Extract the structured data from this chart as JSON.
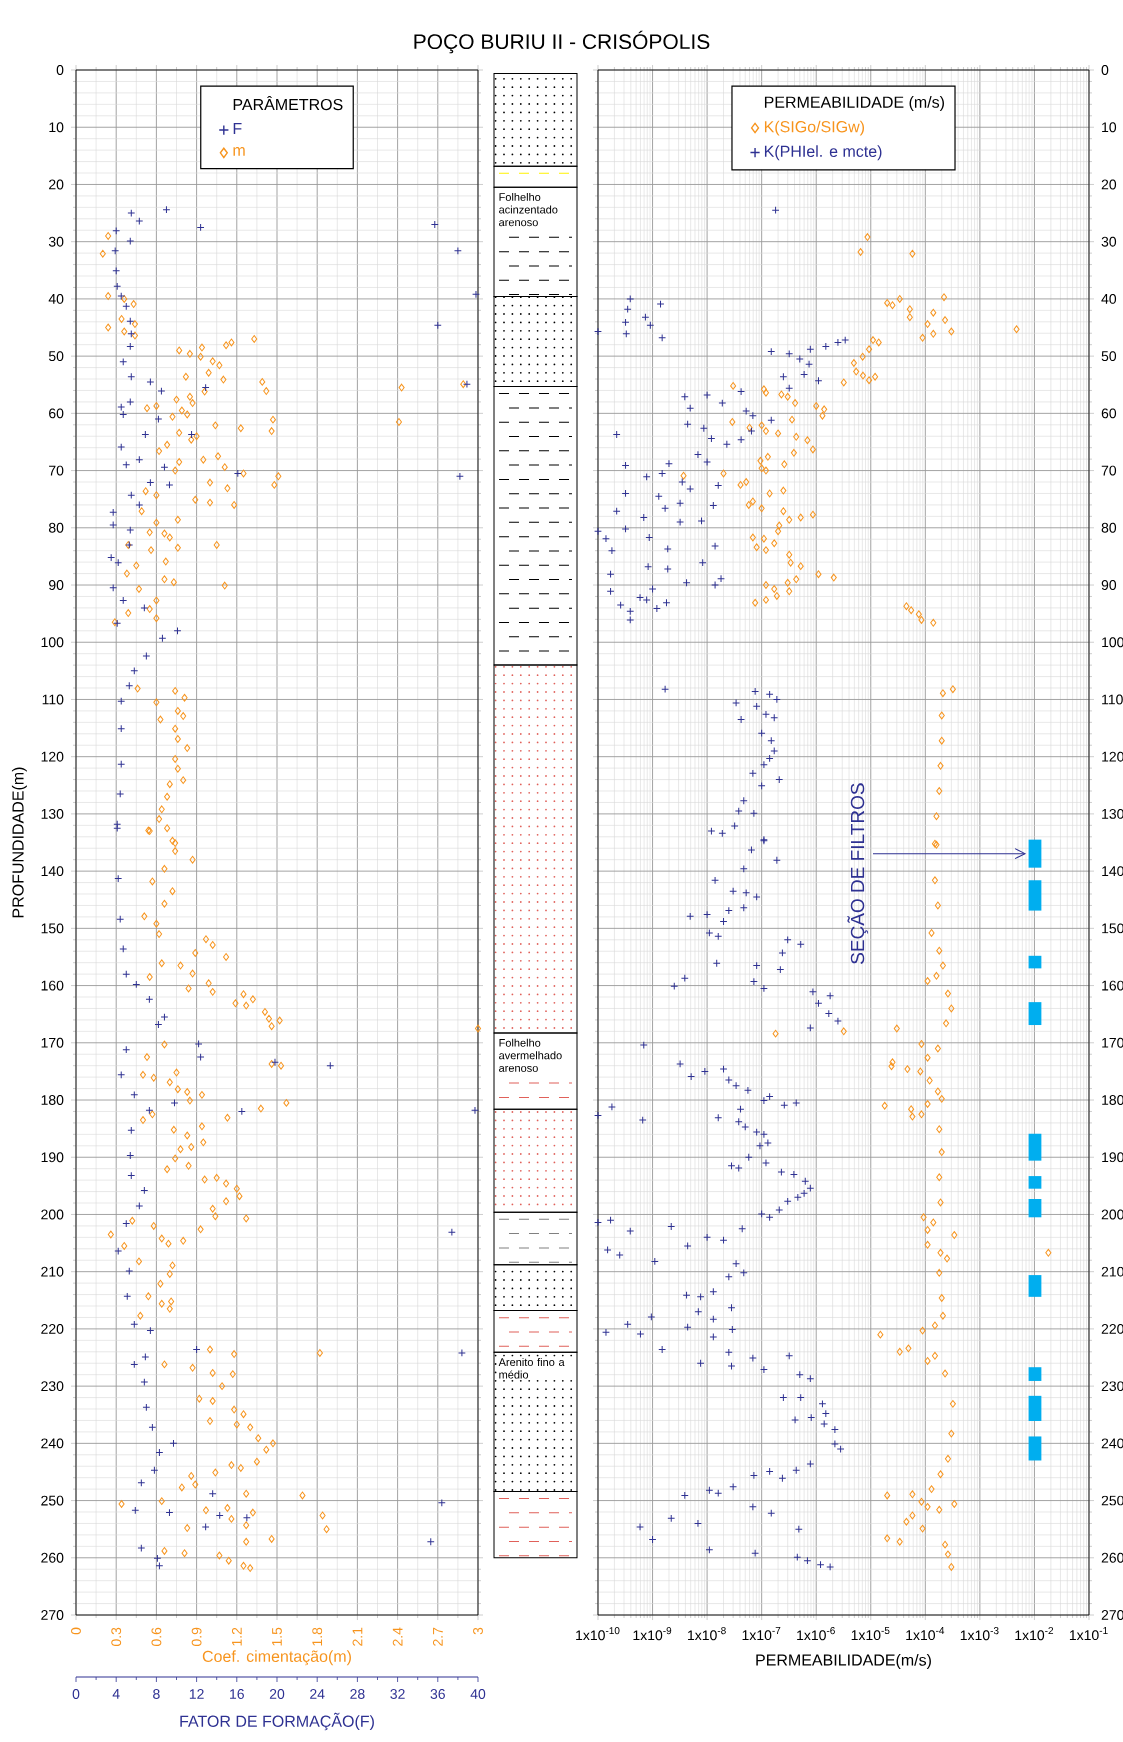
{
  "chart_data": [
    {
      "type": "scatter",
      "title": "POÇO BURIU II - CRISÓPOLIS",
      "ylabel": "PROFUNDIDADE(m)",
      "xlabel": "Coef. cimentação(m)",
      "x2label": "FATOR DE FORMAÇÃO(F)",
      "legend_title": "PARÂMETROS",
      "legend": "top",
      "grid": true,
      "xlim": [
        0,
        3
      ],
      "xticks": [
        0,
        0.3,
        0.6,
        0.9,
        1.2,
        1.5,
        1.8,
        2.1,
        2.4,
        2.7,
        3
      ],
      "x2lim": [
        0,
        40
      ],
      "x2ticks": [
        0,
        4,
        8,
        12,
        16,
        20,
        24,
        28,
        32,
        36,
        40
      ],
      "ylim": [
        270,
        0
      ],
      "yticks": [
        0,
        10,
        20,
        30,
        40,
        50,
        60,
        70,
        80,
        90,
        100,
        110,
        120,
        130,
        140,
        150,
        160,
        170,
        180,
        190,
        200,
        210,
        220,
        230,
        240,
        250,
        260,
        270
      ],
      "series": [
        {
          "name": "F",
          "color": "#2e3192",
          "marker": "cross",
          "axis": "x2",
          "x": [
            5.5,
            6.3,
            9.0,
            12.4,
            35.7,
            38.0,
            39.8,
            36.0,
            4.0,
            5.4,
            3.9,
            4.0,
            4.1,
            4.5,
            5.0,
            5.4,
            5.5,
            5.4,
            4.7,
            5.5,
            7.4,
            8.5,
            12.9,
            38.9,
            5.4,
            4.5,
            4.7,
            8.2,
            6.9,
            4.5,
            5.0,
            6.3,
            8.8,
            11.5,
            16.1,
            38.2,
            7.4,
            9.3,
            5.5,
            6.3,
            3.7,
            3.7,
            5.4,
            5.3,
            3.5,
            4.2,
            3.7,
            4.7,
            6.8,
            4.1,
            10.1,
            8.6,
            7.0,
            5.8,
            5.3,
            4.5,
            4.5,
            4.5,
            4.4,
            4.1,
            4.1,
            4.2,
            4.4,
            4.7,
            5.0,
            6.0,
            7.3,
            8.8,
            8.2,
            5.0,
            12.2,
            12.4,
            19.8,
            25.3,
            4.5,
            5.8,
            9.8,
            7.3,
            16.5,
            39.7,
            5.5,
            5.4,
            5.5,
            6.8,
            6.3,
            5.0,
            4.2,
            37.4,
            5.3,
            5.1,
            5.8,
            7.4,
            12.0,
            38.4,
            6.9,
            5.8,
            6.8,
            7.0,
            7.6,
            8.3,
            9.7,
            7.8,
            6.5,
            13.6,
            36.4,
            5.9,
            9.3,
            14.3,
            17.0,
            12.9,
            35.3,
            6.5,
            8.1,
            8.3
          ],
          "values": [
            25.0,
            26.4,
            24.4,
            27.5,
            27.0,
            31.6,
            39.2,
            44.6,
            28.1,
            29.9,
            31.6,
            35.1,
            37.8,
            39.5,
            41.3,
            43.9,
            46.1,
            48.3,
            51.0,
            53.6,
            54.5,
            56.1,
            55.5,
            54.9,
            58.0,
            58.9,
            60.2,
            61.0,
            63.7,
            65.9,
            69.0,
            68.1,
            69.4,
            63.7,
            70.5,
            71.0,
            72.1,
            72.5,
            74.3,
            76.0,
            77.3,
            79.5,
            80.4,
            83.0,
            85.2,
            86.1,
            90.5,
            92.7,
            94.0,
            96.7,
            98.0,
            99.3,
            102.4,
            105.0,
            107.6,
            110.3,
            115.1,
            121.3,
            126.5,
            131.8,
            132.5,
            141.3,
            148.4,
            153.6,
            158.0,
            159.8,
            162.4,
            165.5,
            166.8,
            171.2,
            170.2,
            172.5,
            173.4,
            174.0,
            175.6,
            179.1,
            180.5,
            181.8,
            182.0,
            181.8,
            185.3,
            189.7,
            193.2,
            195.8,
            198.5,
            201.6,
            206.4,
            203.1,
            209.9,
            214.3,
            219.2,
            220.3,
            223.6,
            224.2,
            224.9,
            226.2,
            229.3,
            233.7,
            237.2,
            241.6,
            240.0,
            244.7,
            246.9,
            248.8,
            250.4,
            251.7,
            252.1,
            252.6,
            253.0,
            254.6,
            257.2,
            258.3,
            260.1,
            261.4
          ]
        },
        {
          "name": "m",
          "color": "#f7941d",
          "marker": "diamond",
          "x": [
            0.24,
            0.2,
            0.24,
            0.24,
            0.36,
            0.43,
            0.34,
            0.44,
            0.36,
            0.44,
            0.77,
            0.85,
            0.94,
            1.12,
            1.16,
            1.33,
            0.93,
            1.02,
            1.07,
            0.99,
            1.1,
            0.82,
            1.39,
            1.42,
            2.43,
            2.89,
            0.96,
            0.75,
            0.85,
            0.87,
            0.53,
            0.6,
            0.79,
            0.83,
            0.72,
            1.04,
            1.23,
            1.47,
            1.46,
            2.41,
            0.77,
            0.9,
            0.68,
            0.62,
            0.86,
            0.77,
            0.95,
            1.06,
            1.11,
            1.25,
            1.51,
            1.48,
            0.74,
            1.0,
            1.13,
            0.52,
            0.6,
            0.89,
            1.0,
            1.18,
            0.49,
            0.76,
            0.6,
            0.55,
            0.66,
            0.7,
            0.39,
            0.56,
            0.76,
            1.05,
            0.45,
            0.67,
            0.38,
            0.66,
            0.73,
            1.11,
            0.47,
            0.6,
            0.55,
            0.39,
            0.29,
            0.6,
            0.46,
            0.74,
            0.81,
            0.6,
            0.76,
            0.63,
            0.8,
            0.74,
            0.76,
            0.83,
            0.74,
            0.76,
            0.8,
            0.7,
            0.68,
            0.64,
            0.62,
            0.54,
            0.68,
            0.74,
            0.55,
            0.72,
            0.74,
            0.87,
            0.66,
            0.57,
            0.72,
            0.66,
            0.51,
            0.6,
            0.62,
            0.97,
            1.02,
            0.89,
            1.12,
            0.64,
            0.78,
            0.87,
            0.55,
            0.99,
            0.84,
            1.02,
            1.25,
            1.19,
            1.32,
            1.27,
            1.41,
            1.44,
            1.52,
            1.46,
            3.0,
            0.66,
            0.53,
            1.46,
            1.53,
            0.5,
            0.58,
            0.75,
            0.7,
            0.76,
            0.83,
            0.94,
            0.85,
            1.57,
            1.38,
            1.13,
            0.5,
            0.57,
            0.73,
            0.94,
            0.83,
            0.95,
            0.86,
            0.78,
            0.74,
            0.84,
            0.68,
            0.96,
            1.05,
            1.12,
            1.2,
            1.22,
            1.12,
            1.02,
            1.04,
            1.27,
            0.93,
            0.58,
            0.42,
            0.26,
            0.36,
            0.64,
            0.69,
            0.8,
            0.47,
            0.72,
            0.7,
            0.63,
            0.54,
            0.64,
            0.71,
            0.7,
            0.48,
            1.0,
            1.18,
            1.82,
            0.66,
            0.87,
            1.02,
            1.17,
            1.09,
            0.92,
            1.02,
            1.18,
            1.25,
            1.0,
            1.2,
            1.3,
            1.36,
            1.42,
            1.47,
            1.35,
            1.16,
            1.23,
            1.04,
            0.86,
            0.79,
            0.89,
            1.27,
            1.69,
            0.34,
            0.64,
            0.97,
            1.13,
            1.32,
            1.84,
            0.83,
            1.16,
            1.27,
            1.87,
            1.27,
            1.46,
            0.66,
            0.81,
            1.07,
            1.14,
            1.25,
            1.3
          ],
          "values": [
            29.0,
            32.1,
            39.5,
            45.0,
            40.0,
            40.9,
            43.5,
            44.4,
            45.7,
            46.4,
            49.0,
            49.6,
            48.5,
            48.1,
            47.6,
            47.0,
            50.1,
            50.9,
            51.6,
            52.9,
            54.1,
            53.6,
            54.5,
            56.1,
            55.5,
            54.9,
            56.2,
            57.6,
            57.1,
            58.2,
            59.1,
            58.7,
            59.5,
            60.2,
            60.6,
            62.1,
            62.6,
            61.1,
            63.1,
            61.5,
            63.4,
            64.0,
            65.5,
            66.6,
            64.6,
            68.5,
            68.1,
            67.5,
            69.4,
            70.5,
            71.0,
            72.5,
            70.0,
            72.1,
            73.1,
            73.6,
            74.3,
            75.1,
            75.6,
            76.0,
            77.1,
            78.6,
            79.1,
            80.8,
            81.0,
            81.7,
            83.0,
            83.9,
            83.5,
            83.0,
            86.6,
            85.9,
            88.0,
            89.0,
            89.5,
            90.1,
            90.7,
            92.7,
            94.2,
            94.9,
            96.5,
            95.8,
            108.1,
            108.5,
            109.7,
            110.5,
            112.0,
            113.5,
            112.9,
            115.1,
            116.9,
            118.5,
            120.4,
            122.1,
            124.1,
            124.8,
            127.0,
            129.2,
            130.9,
            132.9,
            132.5,
            135.1,
            133.0,
            134.7,
            136.5,
            138.0,
            139.6,
            141.8,
            143.5,
            145.7,
            147.9,
            149.2,
            151.0,
            151.9,
            152.9,
            154.3,
            155.0,
            156.1,
            156.5,
            157.9,
            158.5,
            159.6,
            160.5,
            161.1,
            161.5,
            163.1,
            162.4,
            163.5,
            164.6,
            165.8,
            166.1,
            167.1,
            167.5,
            170.3,
            172.5,
            173.7,
            174.0,
            175.6,
            176.1,
            175.2,
            176.9,
            178.1,
            178.6,
            179.1,
            180.1,
            180.5,
            181.5,
            183.1,
            183.5,
            182.5,
            185.2,
            184.6,
            186.2,
            187.4,
            188.2,
            188.6,
            190.2,
            191.5,
            192.1,
            193.9,
            193.6,
            194.6,
            195.5,
            196.8,
            197.7,
            199.0,
            200.3,
            200.7,
            202.6,
            202.0,
            201.1,
            203.5,
            205.5,
            204.2,
            205.1,
            204.6,
            208.2,
            208.9,
            210.4,
            212.1,
            214.3,
            215.6,
            215.2,
            216.5,
            217.7,
            223.6,
            224.4,
            224.2,
            226.2,
            226.8,
            227.7,
            227.9,
            230.0,
            232.2,
            232.6,
            234.1,
            234.9,
            236.1,
            236.7,
            237.2,
            239.1,
            241.1,
            240.0,
            243.2,
            243.8,
            244.3,
            245.1,
            245.7,
            247.7,
            247.2,
            248.8,
            249.1,
            250.6,
            250.1,
            251.7,
            251.3,
            252.1,
            252.6,
            254.8,
            253.2,
            254.3,
            255.0,
            257.2,
            256.7,
            258.8,
            259.2,
            259.6,
            260.5,
            261.4,
            261.8
          ]
        }
      ]
    },
    {
      "type": "other",
      "annotations": [
        "Folhelho acinzentado arenoso",
        "Folhelho avermelhado arenoso",
        "Arenito fino a médio"
      ]
    },
    {
      "type": "scatter",
      "xlabel": "PERMEABILIDADE(m/s)",
      "legend_title": "PERMEABILIDADE (m/s)",
      "legend": "top",
      "grid": true,
      "log": "x",
      "xlim": [
        1e-10,
        0.1
      ],
      "xticks": [
        {
          "value": 1e-10,
          "label": "1x10$^{-10}$"
        },
        {
          "value": 1e-09,
          "label": "1x10$^{-9}$"
        },
        {
          "value": 1e-08,
          "label": "1x10$^{-8}$"
        },
        {
          "value": 1e-07,
          "label": "1x10$^{-7}$"
        },
        {
          "value": 1e-06,
          "label": "1x10$^{-6}$"
        },
        {
          "value": 1e-05,
          "label": "1x10$^{-5}$"
        },
        {
          "value": 0.0001,
          "label": "1x10$^{-4}$"
        },
        {
          "value": 0.001,
          "label": "1x10$^{-3}$"
        },
        {
          "value": 0.01,
          "label": "1x10$^{-2}$"
        },
        {
          "value": 0.1,
          "label": "1x10$^{-1}$"
        }
      ],
      "ylim": [
        270,
        0
      ],
      "yticks": [
        0,
        10,
        20,
        30,
        40,
        50,
        60,
        70,
        80,
        90,
        100,
        110,
        120,
        130,
        140,
        150,
        160,
        170,
        180,
        190,
        200,
        210,
        220,
        230,
        240,
        250,
        260,
        270
      ],
      "series": [
        {
          "name": "K(SIGo/SIGw)",
          "color": "#f7941d",
          "marker": "diamond",
          "x": [
            8.7e-06,
            6.5e-06,
            5.8e-05,
            2e-05,
            2.5e-05,
            3.4e-05,
            5.2e-05,
            5.2e-05,
            0.00014,
            0.00022,
            0.00023,
            0.00011,
            8.9e-05,
            0.00014,
            0.0003,
            0.0047,
            1.1e-05,
            1.4e-05,
            9.3e-06,
            7.1e-06,
            4.9e-06,
            5.4e-06,
            7.2e-06,
            9.3e-06,
            1.2e-05,
            3.2e-06,
            3e-08,
            1.1e-07,
            1.2e-07,
            2.3e-07,
            3e-07,
            4.1e-07,
            1e-06,
            1.4e-06,
            1.3e-06,
            2.9e-08,
            6e-08,
            1e-07,
            1.2e-07,
            2e-07,
            3.6e-07,
            4.3e-07,
            6.9e-07,
            8.7e-07,
            3.9e-07,
            1.3e-07,
            9.5e-08,
            2.6e-07,
            1e-07,
            1.2e-07,
            3.7e-09,
            2e-08,
            4.1e-08,
            5.2e-08,
            1.4e-07,
            2.5e-07,
            6.9e-08,
            5.8e-08,
            1e-07,
            2.5e-07,
            5.2e-07,
            8.7e-07,
            3.2e-07,
            2.1e-07,
            2e-07,
            6.9e-08,
            1.1e-07,
            1.7e-07,
            8.1e-08,
            1.2e-07,
            3.2e-07,
            3.4e-07,
            5.2e-07,
            1.1e-06,
            2.1e-06,
            1.2e-07,
            1.7e-07,
            3e-07,
            4.3e-07,
            3.2e-07,
            7.6e-08,
            1.2e-07,
            1.9e-07,
            4.5e-05,
            5.5e-05,
            7.6e-05,
            8.5e-05,
            0.00014,
            0.00032,
            0.00021,
            0.0002,
            0.0002,
            0.00019,
            0.00018,
            0.00016,
            0.00015,
            0.00016,
            0.00015,
            0.00017,
            0.00013,
            0.00018,
            0.00021,
            0.00011,
            0.00016,
            0.00026,
            0.0003,
            0.00024,
            3.2e-06,
            1.8e-07,
            3e-05,
            8.5e-05,
            0.00017,
            0.00011,
            2.5e-05,
            2.4e-05,
            4.7e-05,
            8.1e-05,
            0.00012,
            0.00017,
            0.0002,
            1.8e-05,
            5.5e-05,
            5.8e-05,
            0.00011,
            8.5e-05,
            0.00018,
            0.0002,
            0.00018,
            0.00019,
            9.3e-05,
            0.00011,
            0.00014,
            0.00034,
            0.00011,
            0.00019,
            0.00025,
            0.018,
            0.00018,
            0.0002,
            0.00021,
            8.9e-05,
            0.00015,
            1.5e-05,
            3.4e-05,
            4.9e-05,
            0.00011,
            0.00015,
            0.00023,
            0.00032,
            0.0003,
            0.00026,
            0.00019,
            0.00013,
            0.00034,
            2e-05,
            5.8e-05,
            8.5e-05,
            0.00011,
            0.00018,
            5.8e-05,
            4.5e-05,
            8.9e-05,
            2e-05,
            3.4e-05,
            0.00023,
            0.00026,
            0.0003
          ],
          "values": [
            29.2,
            31.8,
            32.1,
            40.7,
            41.1,
            40.0,
            41.8,
            43.2,
            42.4,
            39.7,
            43.7,
            44.4,
            46.8,
            46.1,
            45.7,
            45.3,
            47.2,
            47.6,
            48.8,
            50.1,
            51.2,
            52.7,
            53.4,
            54.2,
            53.6,
            54.6,
            55.2,
            55.8,
            56.4,
            56.7,
            57.1,
            58.2,
            58.7,
            59.3,
            60.4,
            61.5,
            62.5,
            62.1,
            63.1,
            63.5,
            61.1,
            64.1,
            64.7,
            66.3,
            66.9,
            67.6,
            68.3,
            68.9,
            69.6,
            70.0,
            70.9,
            70.5,
            72.5,
            72.0,
            74.0,
            73.5,
            75.4,
            76.0,
            76.6,
            77.1,
            78.2,
            77.7,
            78.6,
            79.6,
            80.6,
            81.7,
            81.9,
            82.7,
            83.4,
            83.9,
            84.7,
            86.1,
            86.7,
            88.1,
            88.7,
            90.0,
            90.7,
            89.6,
            89.0,
            91.1,
            93.1,
            92.6,
            91.9,
            93.7,
            94.4,
            95.1,
            96.1,
            96.6,
            108.2,
            108.9,
            112.8,
            117.2,
            121.6,
            126.0,
            130.4,
            135.2,
            135.4,
            141.6,
            146.0,
            150.8,
            153.9,
            156.5,
            159.2,
            158.3,
            161.4,
            164.0,
            166.6,
            168.0,
            168.4,
            167.5,
            170.2,
            171.0,
            172.6,
            173.4,
            174.1,
            174.6,
            175.0,
            176.6,
            178.5,
            179.8,
            181.0,
            181.6,
            182.9,
            180.7,
            182.5,
            185.1,
            189.1,
            193.5,
            197.9,
            200.5,
            202.7,
            201.4,
            203.6,
            205.3,
            206.7,
            207.7,
            206.7,
            210.2,
            214.6,
            217.7,
            220.3,
            219.4,
            221.0,
            224.0,
            223.4,
            225.6,
            224.7,
            227.8,
            233.1,
            238.3,
            242.7,
            245.4,
            248.0,
            250.6,
            249.1,
            248.9,
            250.2,
            251.1,
            251.6,
            252.6,
            253.7,
            254.9,
            256.6,
            257.2,
            257.7,
            259.4,
            261.6
          ]
        },
        {
          "name": "K(PHIel. e mcte)",
          "color": "#2e3192",
          "marker": "cross",
          "x": [
            1.8e-07,
            3.9e-10,
            3.5e-10,
            3.2e-10,
            1e-10,
            3.3e-10,
            7.4e-10,
            9.1e-10,
            1.4e-09,
            1.5e-09,
            1.5e-07,
            3.2e-07,
            5e-07,
            7.8e-07,
            1.5e-06,
            2.5e-06,
            3.4e-06,
            7.4e-07,
            2.5e-07,
            6e-07,
            1.1e-06,
            3.2e-07,
            4.2e-08,
            3.9e-09,
            1e-08,
            4.9e-09,
            1.9e-08,
            5.2e-08,
            6.9e-08,
            1.5e-07,
            4.4e-09,
            8.7e-09,
            6.5e-08,
            2.2e-10,
            1.2e-08,
            2.3e-08,
            4.2e-08,
            6.8e-09,
            1e-08,
            2e-09,
            3.2e-10,
            7.8e-10,
            1.5e-09,
            3.5e-09,
            4.9e-09,
            1.6e-08,
            1.3e-09,
            3.2e-10,
            1.7e-09,
            3.2e-09,
            1.3e-08,
            2.2e-10,
            6.9e-10,
            3.2e-09,
            7.9e-09,
            1e-10,
            3.2e-10,
            1.4e-10,
            8.7e-10,
            1.8e-10,
            1.9e-09,
            1.4e-08,
            8.3e-09,
            8.3e-10,
            1.9e-09,
            1.7e-10,
            4.2e-09,
            1.8e-08,
            1.4e-08,
            1e-09,
            1.7e-10,
            2.6e-10,
            5.9e-10,
            7.8e-10,
            1.8e-09,
            1.2e-09,
            3.9e-10,
            3.9e-10,
            1.7e-09,
            3.4e-08,
            7.6e-08,
            1.4e-07,
            1.9e-07,
            4.2e-08,
            8.1e-08,
            1.2e-07,
            1.7e-07,
            1e-07,
            1.5e-07,
            1.7e-07,
            1.4e-07,
            1.1e-07,
            6.9e-08,
            2.1e-07,
            1e-07,
            4.7e-08,
            3.8e-08,
            7.2e-08,
            3.2e-08,
            1.2e-08,
            1.9e-08,
            1.1e-07,
            6.5e-08,
            1.1e-07,
            1.9e-07,
            4.7e-08,
            1.4e-08,
            3e-08,
            5.2e-08,
            8.1e-08,
            4.7e-08,
            1e-08,
            4.9e-09,
            2e-08,
            1.1e-08,
            1.6e-08,
            2.5e-08,
            3e-07,
            5.2e-07,
            2.4e-07,
            8.1e-08,
            2.2e-07,
            1.5e-08,
            3.9e-09,
            2.5e-09,
            7.2e-08,
            1.1e-07,
            8.7e-07,
            1.1e-06,
            1.8e-06,
            1.7e-06,
            2.5e-06,
            7.8e-07,
            6.9e-10,
            3.2e-09,
            5.1e-09,
            9.1e-09,
            2e-08,
            2.5e-08,
            3.4e-08,
            5.6e-08,
            1.4e-07,
            1.1e-07,
            2.6e-07,
            4.3e-07,
            1.8e-10,
            1e-10,
            6.6e-10,
            1.6e-08,
            4.1e-08,
            3.8e-08,
            5e-08,
            8.1e-08,
            1.1e-07,
            1.3e-07,
            9.3e-08,
            5.8e-08,
            2.8e-08,
            3.8e-08,
            1.2e-07,
            2.3e-07,
            3.9e-07,
            6.3e-07,
            7.8e-07,
            6e-07,
            3e-07,
            4.6e-07,
            2.1e-07,
            1.4e-07,
            1e-07,
            1e-10,
            1.7e-10,
            3.9e-10,
            2.2e-09,
            4.4e-08,
            4.4e-09,
            1e-08,
            2e-08,
            1.5e-10,
            2.5e-10,
            1.1e-09,
            3.4e-08,
            4.7e-08,
            2.5e-08,
            1.3e-08,
            7.6e-09,
            4.2e-09,
            2.8e-08,
            6.9e-09,
            1.3e-08,
            9.5e-10,
            3.5e-10,
            1.4e-10,
            6e-10,
            4.4e-09,
            2.9e-08,
            1.3e-08,
            1.5e-09,
            2.5e-08,
            6.9e-08,
            7.6e-09,
            2.8e-08,
            1.1e-07,
            3.2e-07,
            5e-07,
            7.8e-07,
            5.2e-07,
            2.5e-07,
            1.3e-06,
            1.5e-06,
            4.1e-07,
            8.1e-07,
            1.4e-06,
            2.2e-06,
            2.8e-06,
            2.2e-06,
            7.8e-07,
            4.3e-07,
            2.4e-07,
            7.2e-08,
            1.4e-07,
            3e-08,
            1.6e-08,
            1.1e-08,
            3.9e-09,
            6.9e-08,
            1.5e-07,
            2.2e-09,
            6.8e-09,
            5.9e-10,
            1e-09,
            1.1e-08,
            7.6e-08,
            4.8e-07,
            4.5e-07,
            6.9e-07,
            1.2e-06,
            1.8e-06
          ],
          "values": [
            24.5,
            40.0,
            41.8,
            44.1,
            45.7,
            46.1,
            43.2,
            44.6,
            40.9,
            46.8,
            49.2,
            49.6,
            50.5,
            48.8,
            48.3,
            47.6,
            47.2,
            51.4,
            53.6,
            53.2,
            54.3,
            55.6,
            56.2,
            57.1,
            56.8,
            59.1,
            58.2,
            59.6,
            60.4,
            61.2,
            61.9,
            62.6,
            63.1,
            63.7,
            64.4,
            65.4,
            64.6,
            67.2,
            68.5,
            68.8,
            69.1,
            71.1,
            70.5,
            72.0,
            73.2,
            72.6,
            74.5,
            74.0,
            76.6,
            75.7,
            76.1,
            77.1,
            78.2,
            79.0,
            78.8,
            80.6,
            80.2,
            81.9,
            81.7,
            84.0,
            83.7,
            83.2,
            86.1,
            86.8,
            87.2,
            88.1,
            89.6,
            88.9,
            90.0,
            90.7,
            91.1,
            93.5,
            92.2,
            92.6,
            93.1,
            94.1,
            94.6,
            96.1,
            108.2,
            110.6,
            108.6,
            109.1,
            110.0,
            113.5,
            111.2,
            112.6,
            113.2,
            115.9,
            117.2,
            119.0,
            120.3,
            121.4,
            122.9,
            124.0,
            125.1,
            127.7,
            129.5,
            129.9,
            132.1,
            133.0,
            133.4,
            134.7,
            136.3,
            134.5,
            138.1,
            139.6,
            141.6,
            143.5,
            143.8,
            144.5,
            146.4,
            147.6,
            147.9,
            148.8,
            150.8,
            151.4,
            146.9,
            152.0,
            152.8,
            154.3,
            156.5,
            157.2,
            156.1,
            158.7,
            160.1,
            159.3,
            160.5,
            161.1,
            163.1,
            161.8,
            164.9,
            166.2,
            167.4,
            170.4,
            173.7,
            175.9,
            175.0,
            174.6,
            176.5,
            177.5,
            178.3,
            179.4,
            180.1,
            180.9,
            180.5,
            181.2,
            182.7,
            183.5,
            183.1,
            181.6,
            183.8,
            184.7,
            185.6,
            186.0,
            187.5,
            188.0,
            190.0,
            191.5,
            191.9,
            191.0,
            192.6,
            193.0,
            194.2,
            195.4,
            196.3,
            197.7,
            197.0,
            199.2,
            200.5,
            199.9,
            201.4,
            201.0,
            202.9,
            202.1,
            202.5,
            205.5,
            204.0,
            204.5,
            206.2,
            207.1,
            208.2,
            208.6,
            210.2,
            210.9,
            213.5,
            214.4,
            214.1,
            216.3,
            217.0,
            218.3,
            217.9,
            219.2,
            220.6,
            220.9,
            219.7,
            220.1,
            221.4,
            223.6,
            224.1,
            225.1,
            226.0,
            226.5,
            227.1,
            224.7,
            228.0,
            228.7,
            232.0,
            232.0,
            233.1,
            234.8,
            235.9,
            235.5,
            236.6,
            237.6,
            241.0,
            240.1,
            243.6,
            244.7,
            246.1,
            245.6,
            244.9,
            247.6,
            248.7,
            248.2,
            249.1,
            251.1,
            252.2,
            253.1,
            254.0,
            254.6,
            256.8,
            258.6,
            259.2,
            255.0,
            259.9,
            260.5,
            261.2,
            261.6
          ]
        }
      ],
      "annotations": [
        "SEÇÃO DE FILTROS"
      ]
    }
  ]
}
